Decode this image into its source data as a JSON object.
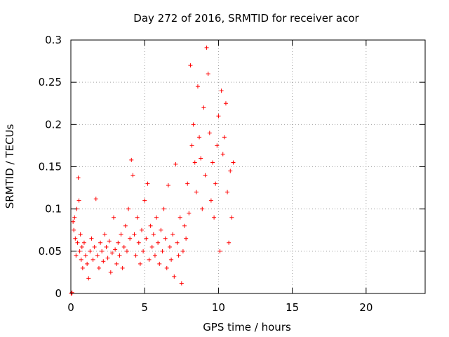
{
  "chart_data": {
    "type": "scatter",
    "title": "Day 272 of 2016, SRMTID for receiver acor",
    "xlabel": "GPS time / hours",
    "ylabel": "SRMTID / TECUs",
    "xlim": [
      0,
      24
    ],
    "ylim": [
      0,
      0.3
    ],
    "xticks": [
      0,
      5,
      10,
      15,
      20
    ],
    "xtick_labels": [
      "0",
      "5",
      "10",
      "15",
      "20"
    ],
    "yticks": [
      0,
      0.05,
      0.1,
      0.15,
      0.2,
      0.25,
      0.3
    ],
    "ytick_labels": [
      "0",
      "0.05",
      "0.1",
      "0.15",
      "0.2",
      "0.25",
      "0.3"
    ],
    "grid": true,
    "marker": "+",
    "marker_color": "#ff0000",
    "series": [
      {
        "name": "SRMTID",
        "points": [
          [
            0.02,
            0.0
          ],
          [
            0.05,
            0.0
          ],
          [
            0.08,
            0.001
          ],
          [
            0.15,
            0.085
          ],
          [
            0.2,
            0.075
          ],
          [
            0.25,
            0.09
          ],
          [
            0.3,
            0.065
          ],
          [
            0.35,
            0.045
          ],
          [
            0.4,
            0.1
          ],
          [
            0.45,
            0.06
          ],
          [
            0.5,
            0.137
          ],
          [
            0.55,
            0.11
          ],
          [
            0.6,
            0.05
          ],
          [
            0.65,
            0.07
          ],
          [
            0.7,
            0.04
          ],
          [
            0.75,
            0.055
          ],
          [
            0.8,
            0.03
          ],
          [
            0.9,
            0.06
          ],
          [
            1.0,
            0.045
          ],
          [
            1.1,
            0.035
          ],
          [
            1.2,
            0.018
          ],
          [
            1.3,
            0.05
          ],
          [
            1.4,
            0.065
          ],
          [
            1.5,
            0.04
          ],
          [
            1.6,
            0.055
          ],
          [
            1.7,
            0.112
          ],
          [
            1.8,
            0.045
          ],
          [
            1.9,
            0.03
          ],
          [
            2.0,
            0.06
          ],
          [
            2.1,
            0.05
          ],
          [
            2.2,
            0.038
          ],
          [
            2.3,
            0.07
          ],
          [
            2.4,
            0.055
          ],
          [
            2.5,
            0.042
          ],
          [
            2.6,
            0.062
          ],
          [
            2.7,
            0.025
          ],
          [
            2.8,
            0.048
          ],
          [
            2.9,
            0.09
          ],
          [
            3.0,
            0.052
          ],
          [
            3.1,
            0.035
          ],
          [
            3.2,
            0.06
          ],
          [
            3.3,
            0.045
          ],
          [
            3.4,
            0.07
          ],
          [
            3.5,
            0.03
          ],
          [
            3.6,
            0.055
          ],
          [
            3.7,
            0.08
          ],
          [
            3.8,
            0.05
          ],
          [
            3.9,
            0.1
          ],
          [
            4.0,
            0.065
          ],
          [
            4.1,
            0.158
          ],
          [
            4.2,
            0.14
          ],
          [
            4.3,
            0.07
          ],
          [
            4.4,
            0.045
          ],
          [
            4.5,
            0.09
          ],
          [
            4.6,
            0.06
          ],
          [
            4.7,
            0.035
          ],
          [
            4.8,
            0.075
          ],
          [
            4.9,
            0.05
          ],
          [
            5.0,
            0.11
          ],
          [
            5.1,
            0.065
          ],
          [
            5.2,
            0.13
          ],
          [
            5.3,
            0.04
          ],
          [
            5.4,
            0.08
          ],
          [
            5.5,
            0.055
          ],
          [
            5.6,
            0.07
          ],
          [
            5.7,
            0.045
          ],
          [
            5.8,
            0.09
          ],
          [
            5.9,
            0.06
          ],
          [
            6.0,
            0.035
          ],
          [
            6.1,
            0.075
          ],
          [
            6.2,
            0.05
          ],
          [
            6.3,
            0.1
          ],
          [
            6.4,
            0.065
          ],
          [
            6.5,
            0.03
          ],
          [
            6.6,
            0.128
          ],
          [
            6.7,
            0.055
          ],
          [
            6.8,
            0.04
          ],
          [
            6.9,
            0.07
          ],
          [
            7.0,
            0.02
          ],
          [
            7.1,
            0.153
          ],
          [
            7.2,
            0.06
          ],
          [
            7.3,
            0.045
          ],
          [
            7.4,
            0.09
          ],
          [
            7.5,
            0.012
          ],
          [
            7.6,
            0.05
          ],
          [
            7.7,
            0.08
          ],
          [
            7.8,
            0.065
          ],
          [
            7.9,
            0.13
          ],
          [
            8.0,
            0.095
          ],
          [
            8.1,
            0.27
          ],
          [
            8.2,
            0.175
          ],
          [
            8.3,
            0.2
          ],
          [
            8.4,
            0.155
          ],
          [
            8.5,
            0.12
          ],
          [
            8.6,
            0.245
          ],
          [
            8.7,
            0.185
          ],
          [
            8.8,
            0.16
          ],
          [
            8.9,
            0.1
          ],
          [
            9.0,
            0.22
          ],
          [
            9.1,
            0.14
          ],
          [
            9.2,
            0.291
          ],
          [
            9.3,
            0.26
          ],
          [
            9.4,
            0.19
          ],
          [
            9.5,
            0.11
          ],
          [
            9.6,
            0.155
          ],
          [
            9.7,
            0.09
          ],
          [
            9.8,
            0.13
          ],
          [
            9.9,
            0.175
          ],
          [
            10.0,
            0.21
          ],
          [
            10.1,
            0.05
          ],
          [
            10.2,
            0.24
          ],
          [
            10.3,
            0.165
          ],
          [
            10.4,
            0.185
          ],
          [
            10.5,
            0.225
          ],
          [
            10.6,
            0.12
          ],
          [
            10.7,
            0.06
          ],
          [
            10.8,
            0.145
          ],
          [
            10.9,
            0.09
          ],
          [
            11.0,
            0.155
          ]
        ]
      }
    ]
  }
}
